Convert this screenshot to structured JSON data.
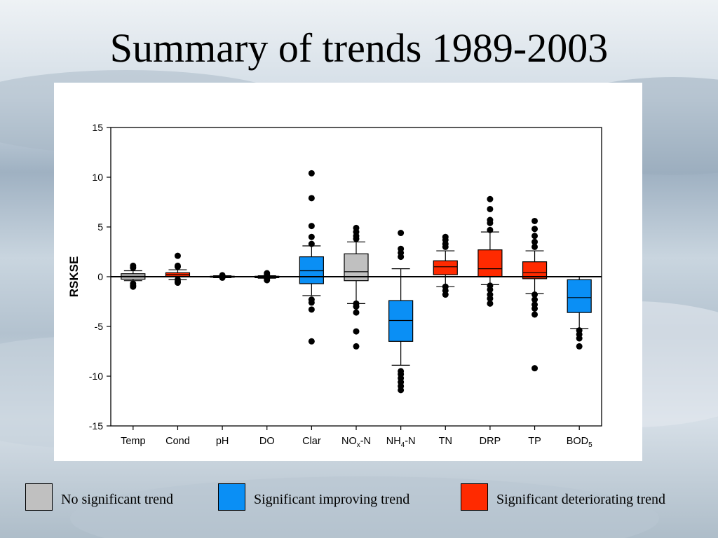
{
  "slide": {
    "title": "Summary of trends 1989-2003"
  },
  "colors": {
    "no_trend": "#c0c0c0",
    "improving": "#0a8ff5",
    "deteriorating": "#ff2a00"
  },
  "legend": [
    {
      "label": "No significant trend",
      "color": "#c0c0c0"
    },
    {
      "label": "Significant improving trend",
      "color": "#0a8ff5"
    },
    {
      "label": "Significant deteriorating trend",
      "color": "#ff2a00"
    }
  ],
  "chart_data": {
    "type": "box",
    "title": "",
    "xlabel": "",
    "ylabel": "RSKSE",
    "ylim": [
      -15,
      15
    ],
    "yticks": [
      15,
      10,
      5,
      0,
      -5,
      -10,
      -15
    ],
    "reference_line": 0,
    "grid": false,
    "categories": [
      {
        "label": "Temp",
        "sub": "",
        "suffix": "",
        "trend": "no_trend",
        "whisker_low": -0.4,
        "q1": -0.25,
        "median": 0.05,
        "q3": 0.3,
        "whisker_high": 0.6,
        "outliers": [
          1.1,
          0.9,
          -0.7,
          -0.9,
          -1.0
        ]
      },
      {
        "label": "Cond",
        "sub": "",
        "suffix": "",
        "trend": "deteriorating",
        "whisker_low": -0.3,
        "q1": 0.0,
        "median": 0.2,
        "q3": 0.4,
        "whisker_high": 0.7,
        "outliers": [
          2.1,
          1.1,
          1.0,
          -0.3,
          -0.5,
          -0.6
        ]
      },
      {
        "label": "pH",
        "sub": "",
        "suffix": "",
        "trend": "no_trend",
        "whisker_low": -0.1,
        "q1": -0.05,
        "median": 0.0,
        "q3": 0.05,
        "whisker_high": 0.1,
        "outliers": [
          0.15,
          -0.1
        ]
      },
      {
        "label": "DO",
        "sub": "",
        "suffix": "",
        "trend": "no_trend",
        "whisker_low": -0.15,
        "q1": -0.1,
        "median": 0.0,
        "q3": 0.05,
        "whisker_high": 0.1,
        "outliers": [
          0.35,
          0.2,
          -0.2,
          -0.35
        ]
      },
      {
        "label": "Clar",
        "sub": "",
        "suffix": "",
        "trend": "improving",
        "whisker_low": -1.9,
        "q1": -0.7,
        "median": 0.6,
        "q3": 2.0,
        "whisker_high": 3.1,
        "outliers": [
          10.4,
          7.9,
          5.1,
          4.0,
          3.3,
          -2.3,
          -2.6,
          -3.3,
          -6.5
        ]
      },
      {
        "label": "NO",
        "sub": "x",
        "suffix": "-N",
        "trend": "no_trend",
        "whisker_low": -2.7,
        "q1": -0.4,
        "median": 0.5,
        "q3": 2.3,
        "whisker_high": 3.5,
        "outliers": [
          4.9,
          4.5,
          4.1,
          3.8,
          -2.7,
          -3.0,
          -3.6,
          -5.5,
          -7.0
        ]
      },
      {
        "label": "NH",
        "sub": "4",
        "suffix": "-N",
        "trend": "improving",
        "whisker_low": -8.9,
        "q1": -6.5,
        "median": -4.4,
        "q3": -2.4,
        "whisker_high": 0.8,
        "outliers": [
          4.4,
          2.8,
          2.4,
          2.0,
          -9.5,
          -9.8,
          -10.2,
          -10.6,
          -11.0,
          -11.4
        ]
      },
      {
        "label": "TN",
        "sub": "",
        "suffix": "",
        "trend": "deteriorating",
        "whisker_low": -1.0,
        "q1": 0.2,
        "median": 1.0,
        "q3": 1.6,
        "whisker_high": 2.6,
        "outliers": [
          4.0,
          3.7,
          3.3,
          3.0,
          -1.0,
          -1.4,
          -1.8
        ]
      },
      {
        "label": "DRP",
        "sub": "",
        "suffix": "",
        "trend": "deteriorating",
        "whisker_low": -0.8,
        "q1": 0.0,
        "median": 0.8,
        "q3": 2.7,
        "whisker_high": 4.5,
        "outliers": [
          7.8,
          6.8,
          5.7,
          5.4,
          4.7,
          -0.9,
          -1.3,
          -1.8,
          -2.2,
          -2.7
        ]
      },
      {
        "label": "TP",
        "sub": "",
        "suffix": "",
        "trend": "deteriorating",
        "whisker_low": -1.7,
        "q1": -0.2,
        "median": 0.4,
        "q3": 1.5,
        "whisker_high": 2.6,
        "outliers": [
          5.6,
          4.8,
          4.1,
          3.5,
          3.0,
          -1.8,
          -2.3,
          -2.8,
          -3.2,
          -3.8,
          -9.2
        ]
      },
      {
        "label": "BOD",
        "sub": "5",
        "suffix": "",
        "trend": "improving",
        "whisker_low": -5.2,
        "q1": -3.6,
        "median": -2.1,
        "q3": -0.3,
        "whisker_high": 0.0,
        "outliers": [
          -5.4,
          -5.8,
          -6.2,
          -7.0
        ]
      }
    ]
  }
}
